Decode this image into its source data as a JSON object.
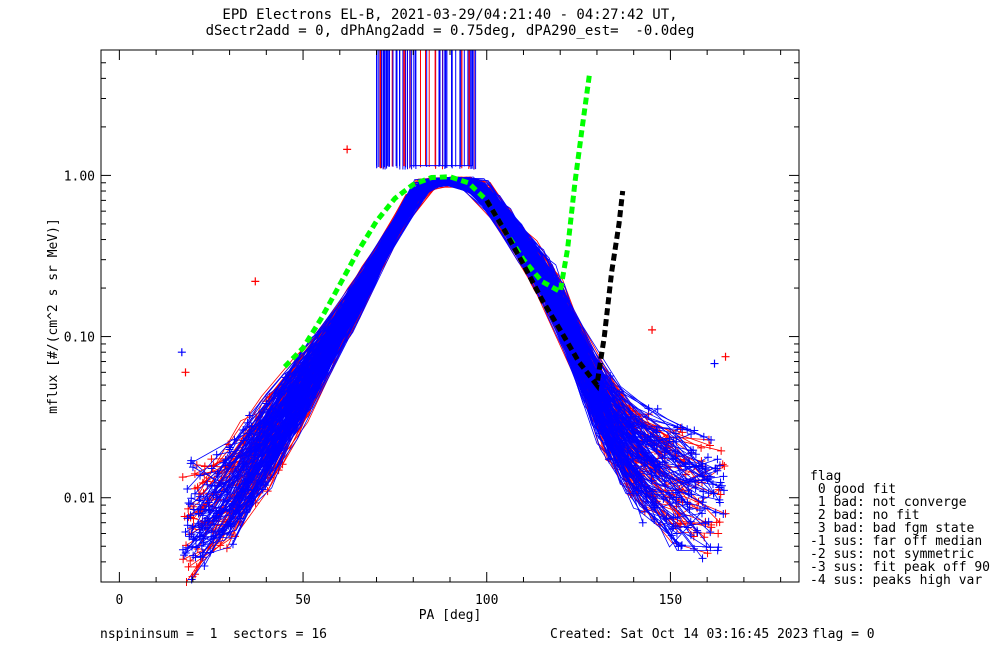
{
  "header": {
    "title_line1": "EPD Electrons EL-B, 2021-03-29/04:21:40 - 04:27:42 UT,",
    "title_line2": "dSectr2add = 0, dPhAng2add = 0.75deg, dPA290_est=  -0.0deg"
  },
  "footer": {
    "left": "nspininsum =  1  sectors = 16",
    "created": "Created: Sat Oct 14 03:16:45 2023",
    "flag": "flag = 0"
  },
  "legend": {
    "title": "flag",
    "items": [
      " 0 good fit",
      " 1 bad: not converge",
      " 2 bad: no fit",
      " 3 bad: bad fgm state",
      "-1 sus: far off median",
      "-2 sus: not symmetric",
      "-3 sus: fit peak off 90",
      "-4 sus: peaks high var"
    ]
  },
  "chart_data": {
    "type": "line",
    "xlabel": "PA [deg]",
    "ylabel": "mflux [#/(cm^2 s sr MeV)]",
    "xlim": [
      -5,
      185
    ],
    "ylim": [
      0.003,
      6
    ],
    "yscale": "log",
    "x_ticks": [
      0,
      50,
      100,
      150
    ],
    "y_ticks": [
      0.01,
      0.1,
      1.0
    ],
    "y_tick_labels": [
      "0.01",
      "0.10",
      "1.00"
    ],
    "colors": {
      "red": "#ff0000",
      "blue": "#0000ff",
      "green": "#00ff00",
      "black": "#000000"
    },
    "series": [
      {
        "color": "#00ff00",
        "style": "dashed",
        "x": [
          45,
          50,
          55,
          60,
          65,
          70,
          75,
          80,
          85,
          90,
          95,
          100,
          105,
          110,
          115,
          120,
          122,
          124,
          126,
          128
        ],
        "y": [
          0.065,
          0.085,
          0.13,
          0.21,
          0.34,
          0.52,
          0.72,
          0.88,
          0.97,
          0.98,
          0.9,
          0.7,
          0.45,
          0.3,
          0.22,
          0.19,
          0.35,
          0.9,
          2.0,
          4.3
        ]
      },
      {
        "color": "#000000",
        "style": "dashed",
        "x": [
          100,
          105,
          110,
          115,
          120,
          125,
          130,
          132,
          134,
          136,
          137
        ],
        "y": [
          0.7,
          0.45,
          0.28,
          0.17,
          0.11,
          0.07,
          0.05,
          0.1,
          0.25,
          0.5,
          0.8
        ]
      }
    ],
    "bundle": {
      "description": "dense red and blue fitted curves",
      "red_count": 140,
      "blue_count": 190,
      "shape_x": [
        18,
        30,
        42,
        55,
        65,
        75,
        80,
        85,
        90,
        95,
        100,
        110,
        120,
        130,
        140,
        150,
        160
      ],
      "shape_log_y": [
        -2.2,
        -2.0,
        -1.6,
        -1.15,
        -0.75,
        -0.35,
        -0.08,
        -0.03,
        -0.02,
        -0.05,
        -0.1,
        -0.45,
        -0.8,
        -1.4,
        -1.75,
        -1.9,
        -2.0
      ]
    },
    "spikes": {
      "x_range": [
        70,
        97
      ],
      "top_y": 6,
      "bottom_y": 1.15
    },
    "outliers": [
      {
        "x": 62,
        "y": 1.45,
        "color": "#ff0000"
      },
      {
        "x": 37,
        "y": 0.22,
        "color": "#ff0000"
      },
      {
        "x": 165,
        "y": 0.075,
        "color": "#ff0000"
      },
      {
        "x": 145,
        "y": 0.11,
        "color": "#ff0000"
      },
      {
        "x": 17,
        "y": 0.08,
        "color": "#0000ff"
      },
      {
        "x": 18,
        "y": 0.06,
        "color": "#ff0000"
      },
      {
        "x": 162,
        "y": 0.068,
        "color": "#0000ff"
      }
    ]
  }
}
